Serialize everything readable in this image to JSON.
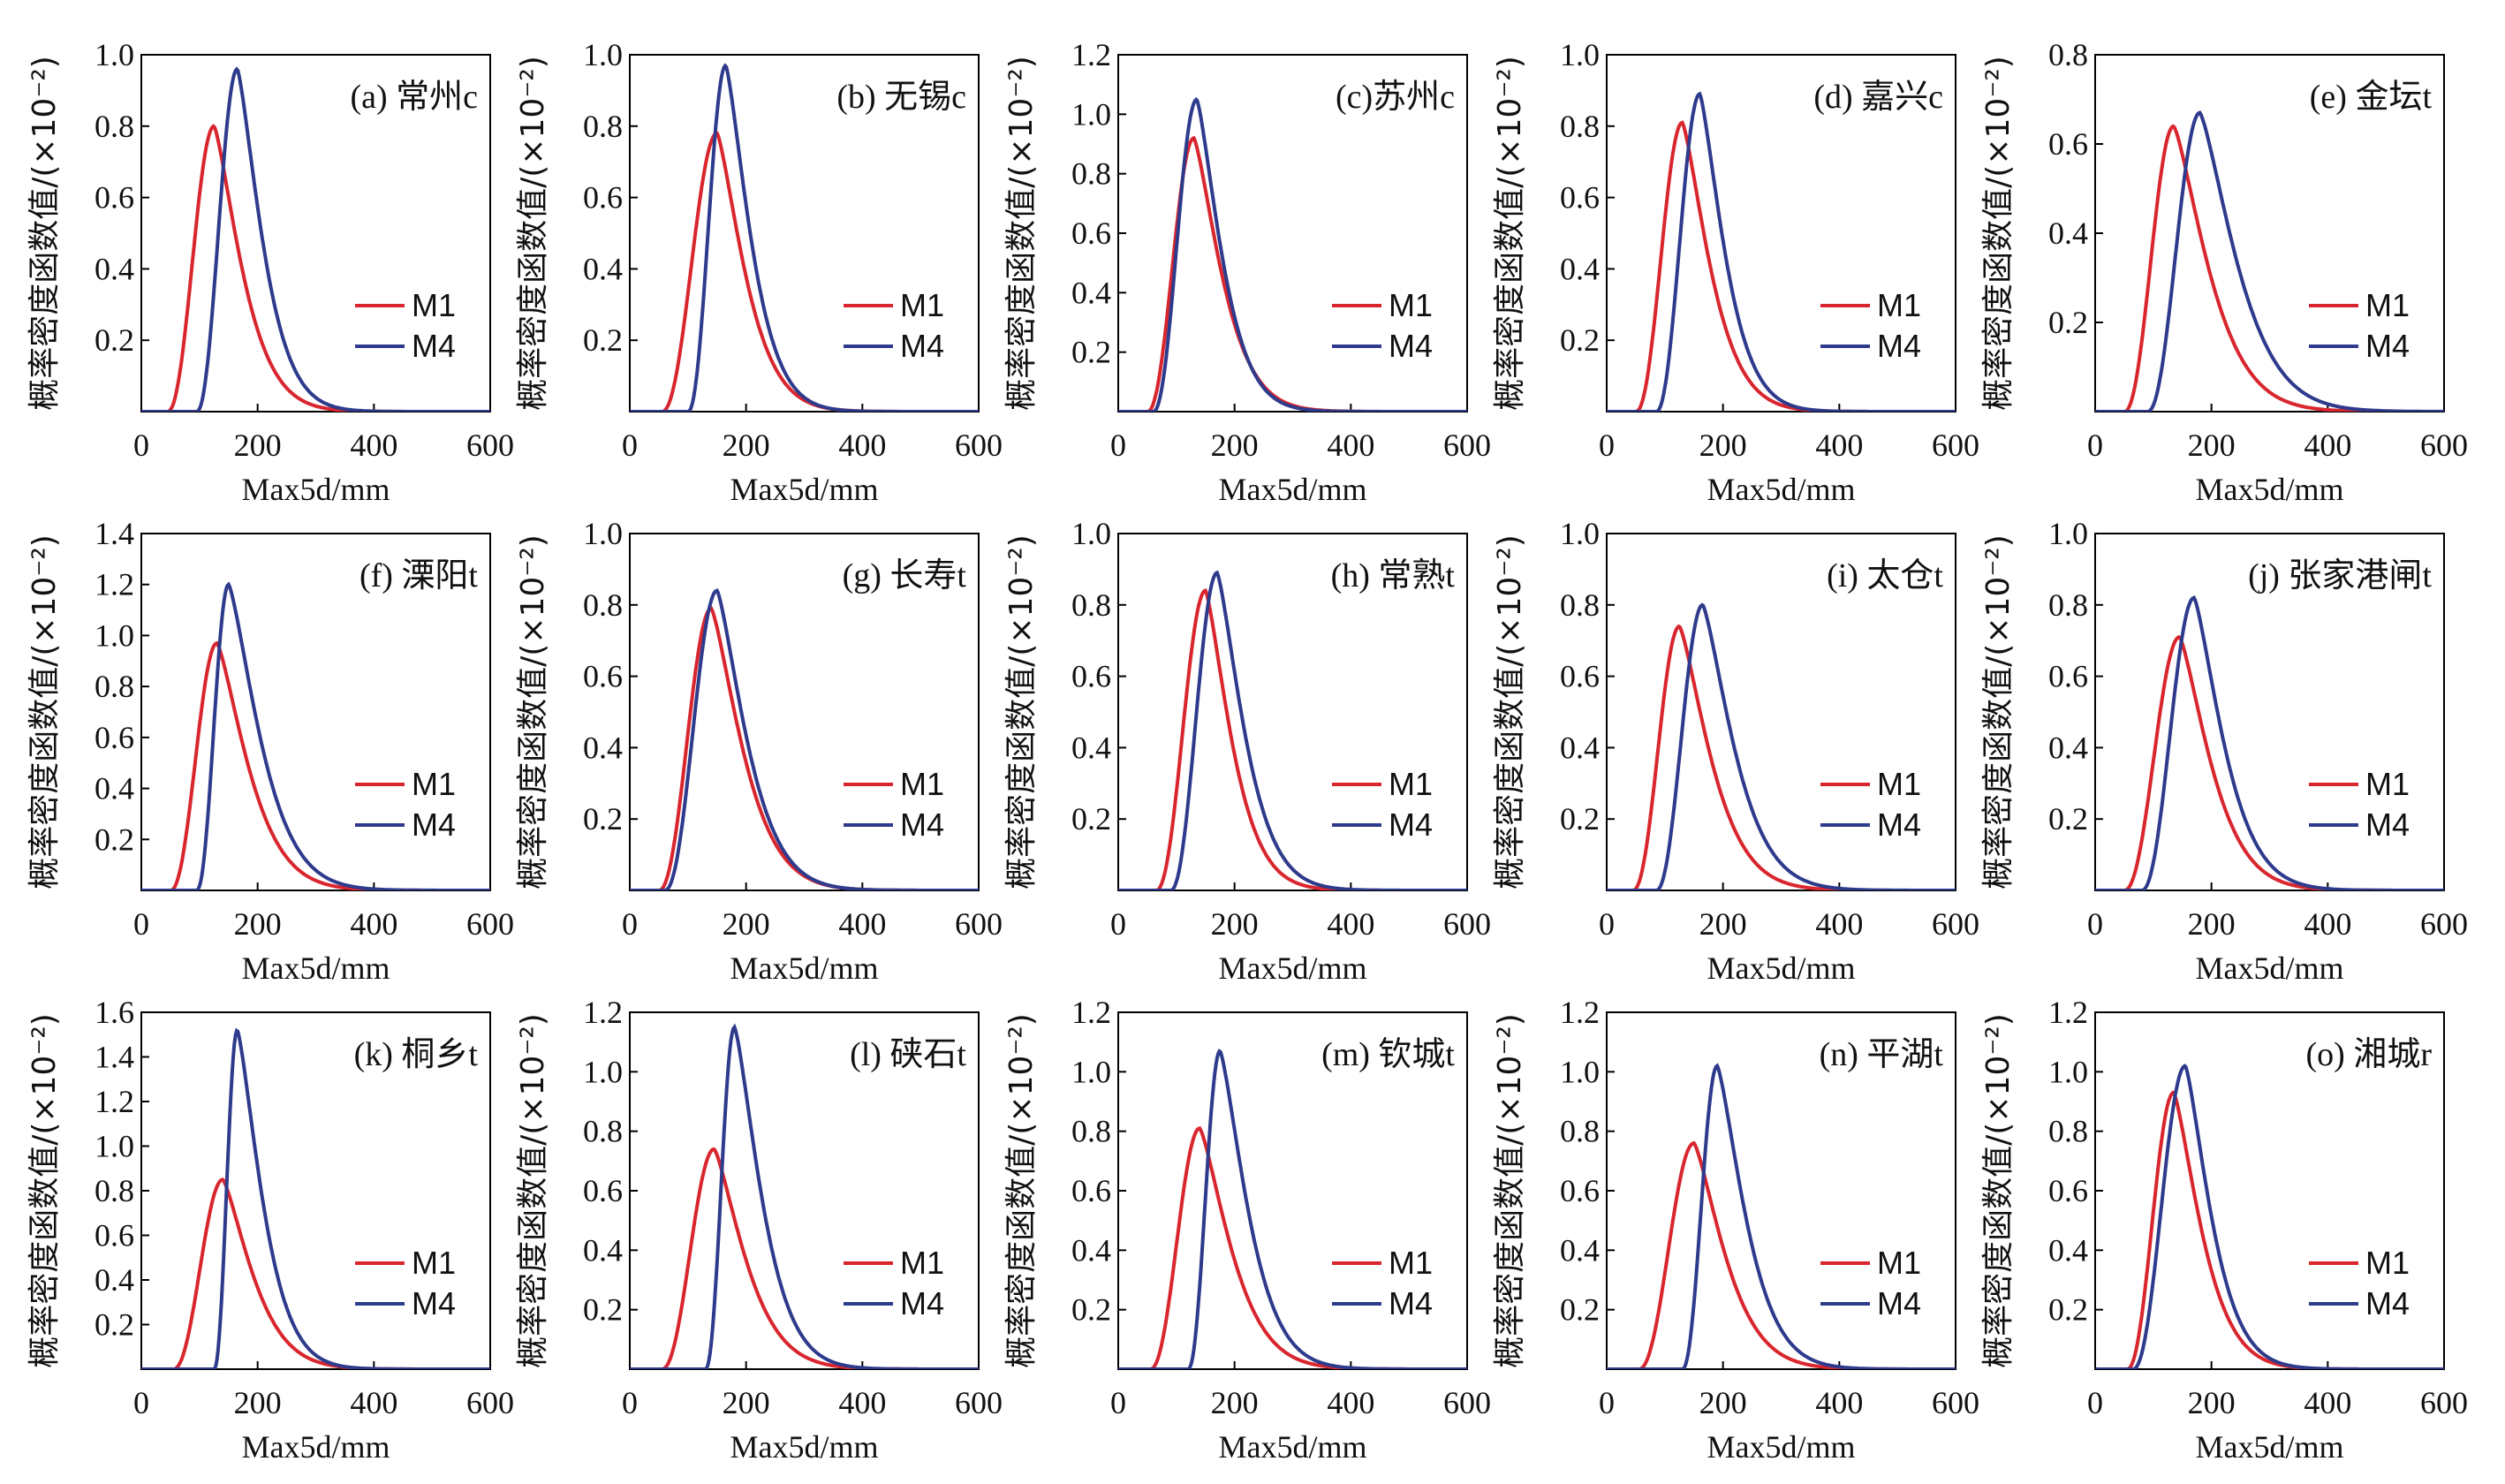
{
  "figure": {
    "ylabel": "概率密度函数值/(×10⁻²)",
    "xlabel": "Max5d/mm"
  },
  "chart_data": [
    {
      "type": "line",
      "title": "(a) 常州c",
      "xlabel": "Max5d/mm",
      "ylabel": "概率密度函数值/(×10⁻²)",
      "xlim": [
        0,
        600
      ],
      "ylim": [
        0,
        1.0
      ],
      "yticks": [
        0.2,
        0.4,
        0.6,
        0.8,
        1.0
      ],
      "xticks": [
        0,
        200,
        400,
        600
      ],
      "legend": "right",
      "series": [
        {
          "name": "M1",
          "color": "#d9262e",
          "peak_x": 125,
          "peak_y": 0.8,
          "start_x": 45,
          "right_decay": 0.045
        },
        {
          "name": "M4",
          "color": "#2e3a8c",
          "peak_x": 165,
          "peak_y": 0.96,
          "start_x": 95,
          "right_decay": 0.05
        }
      ]
    },
    {
      "type": "line",
      "title": "(b) 无锡c",
      "xlabel": "Max5d/mm",
      "ylabel": "概率密度函数值/(×10⁻²)",
      "xlim": [
        0,
        600
      ],
      "ylim": [
        0,
        1.0
      ],
      "yticks": [
        0.2,
        0.4,
        0.6,
        0.8,
        1.0
      ],
      "xticks": [
        0,
        200,
        400,
        600
      ],
      "legend": "right",
      "series": [
        {
          "name": "M1",
          "color": "#d9262e",
          "peak_x": 150,
          "peak_y": 0.78,
          "start_x": 55,
          "right_decay": 0.045
        },
        {
          "name": "M4",
          "color": "#2e3a8c",
          "peak_x": 165,
          "peak_y": 0.97,
          "start_x": 100,
          "right_decay": 0.05
        }
      ]
    },
    {
      "type": "line",
      "title": "(c)苏州c",
      "xlabel": "Max5d/mm",
      "ylabel": "概率密度函数值/(×10⁻²)",
      "xlim": [
        0,
        600
      ],
      "ylim": [
        0,
        1.2
      ],
      "yticks": [
        0.2,
        0.4,
        0.6,
        0.8,
        1.0,
        1.2
      ],
      "xticks": [
        0,
        200,
        400,
        600
      ],
      "legend": "right",
      "series": [
        {
          "name": "M1",
          "color": "#d9262e",
          "peak_x": 130,
          "peak_y": 0.92,
          "start_x": 50,
          "right_decay": 0.045
        },
        {
          "name": "M4",
          "color": "#2e3a8c",
          "peak_x": 135,
          "peak_y": 1.05,
          "start_x": 60,
          "right_decay": 0.05
        }
      ]
    },
    {
      "type": "line",
      "title": "(d) 嘉兴c",
      "xlabel": "Max5d/mm",
      "ylabel": "概率密度函数值/(×10⁻²)",
      "xlim": [
        0,
        600
      ],
      "ylim": [
        0,
        1.0
      ],
      "yticks": [
        0.2,
        0.4,
        0.6,
        0.8,
        1.0
      ],
      "xticks": [
        0,
        200,
        400,
        600
      ],
      "legend": "right",
      "series": [
        {
          "name": "M1",
          "color": "#d9262e",
          "peak_x": 130,
          "peak_y": 0.81,
          "start_x": 50,
          "right_decay": 0.045
        },
        {
          "name": "M4",
          "color": "#2e3a8c",
          "peak_x": 160,
          "peak_y": 0.89,
          "start_x": 85,
          "right_decay": 0.05
        }
      ]
    },
    {
      "type": "line",
      "title": "(e) 金坛t",
      "xlabel": "Max5d/mm",
      "ylabel": "概率密度函数值/(×10⁻²)",
      "xlim": [
        0,
        600
      ],
      "ylim": [
        0,
        0.8
      ],
      "yticks": [
        0.2,
        0.4,
        0.6,
        0.8
      ],
      "xticks": [
        0,
        200,
        400,
        600
      ],
      "legend": "right",
      "series": [
        {
          "name": "M1",
          "color": "#d9262e",
          "peak_x": 135,
          "peak_y": 0.64,
          "start_x": 50,
          "right_decay": 0.036
        },
        {
          "name": "M4",
          "color": "#2e3a8c",
          "peak_x": 180,
          "peak_y": 0.67,
          "start_x": 90,
          "right_decay": 0.034
        }
      ]
    },
    {
      "type": "line",
      "title": "(f) 溧阳t",
      "xlabel": "Max5d/mm",
      "ylabel": "概率密度函数值/(×10⁻²)",
      "xlim": [
        0,
        600
      ],
      "ylim": [
        0,
        1.4
      ],
      "yticks": [
        0.2,
        0.4,
        0.6,
        0.8,
        1.0,
        1.2,
        1.4
      ],
      "xticks": [
        0,
        200,
        400,
        600
      ],
      "legend": "right",
      "series": [
        {
          "name": "M1",
          "color": "#d9262e",
          "peak_x": 130,
          "peak_y": 0.97,
          "start_x": 50,
          "right_decay": 0.04
        },
        {
          "name": "M4",
          "color": "#2e3a8c",
          "peak_x": 150,
          "peak_y": 1.2,
          "start_x": 95,
          "right_decay": 0.04
        }
      ]
    },
    {
      "type": "line",
      "title": "(g) 长寿t",
      "xlabel": "Max5d/mm",
      "ylabel": "概率密度函数值/(×10⁻²)",
      "xlim": [
        0,
        600
      ],
      "ylim": [
        0,
        1.0
      ],
      "yticks": [
        0.2,
        0.4,
        0.6,
        0.8,
        1.0
      ],
      "xticks": [
        0,
        200,
        400,
        600
      ],
      "legend": "right",
      "series": [
        {
          "name": "M1",
          "color": "#d9262e",
          "peak_x": 140,
          "peak_y": 0.79,
          "start_x": 50,
          "right_decay": 0.04
        },
        {
          "name": "M4",
          "color": "#2e3a8c",
          "peak_x": 150,
          "peak_y": 0.84,
          "start_x": 60,
          "right_decay": 0.042
        }
      ]
    },
    {
      "type": "line",
      "title": "(h) 常熟t",
      "xlabel": "Max5d/mm",
      "ylabel": "概率密度函数值/(×10⁻²)",
      "xlim": [
        0,
        600
      ],
      "ylim": [
        0,
        1.0
      ],
      "yticks": [
        0.2,
        0.4,
        0.6,
        0.8,
        1.0
      ],
      "xticks": [
        0,
        200,
        400,
        600
      ],
      "legend": "right",
      "series": [
        {
          "name": "M1",
          "color": "#d9262e",
          "peak_x": 150,
          "peak_y": 0.84,
          "start_x": 65,
          "right_decay": 0.048
        },
        {
          "name": "M4",
          "color": "#2e3a8c",
          "peak_x": 170,
          "peak_y": 0.89,
          "start_x": 90,
          "right_decay": 0.046
        }
      ]
    },
    {
      "type": "line",
      "title": "(i) 太仓t",
      "xlabel": "Max5d/mm",
      "ylabel": "概率密度函数值/(×10⁻²)",
      "xlim": [
        0,
        600
      ],
      "ylim": [
        0,
        1.0
      ],
      "yticks": [
        0.2,
        0.4,
        0.6,
        0.8,
        1.0
      ],
      "xticks": [
        0,
        200,
        400,
        600
      ],
      "legend": "right",
      "series": [
        {
          "name": "M1",
          "color": "#d9262e",
          "peak_x": 125,
          "peak_y": 0.74,
          "start_x": 45,
          "right_decay": 0.04
        },
        {
          "name": "M4",
          "color": "#2e3a8c",
          "peak_x": 165,
          "peak_y": 0.8,
          "start_x": 85,
          "right_decay": 0.04
        }
      ]
    },
    {
      "type": "line",
      "title": "(j) 张家港闸t",
      "xlabel": "Max5d/mm",
      "ylabel": "概率密度函数值/(×10⁻²)",
      "xlim": [
        0,
        600
      ],
      "ylim": [
        0,
        1.0
      ],
      "yticks": [
        0.2,
        0.4,
        0.6,
        0.8,
        1.0
      ],
      "xticks": [
        0,
        200,
        400,
        600
      ],
      "legend": "right",
      "series": [
        {
          "name": "M1",
          "color": "#d9262e",
          "peak_x": 145,
          "peak_y": 0.71,
          "start_x": 50,
          "right_decay": 0.04
        },
        {
          "name": "M4",
          "color": "#2e3a8c",
          "peak_x": 170,
          "peak_y": 0.82,
          "start_x": 80,
          "right_decay": 0.042
        }
      ]
    },
    {
      "type": "line",
      "title": "(k) 桐乡t",
      "xlabel": "Max5d/mm",
      "ylabel": "概率密度函数值/(×10⁻²)",
      "xlim": [
        0,
        600
      ],
      "ylim": [
        0,
        1.6
      ],
      "yticks": [
        0.2,
        0.4,
        0.6,
        0.8,
        1.0,
        1.2,
        1.4,
        1.6
      ],
      "xticks": [
        0,
        200,
        400,
        600
      ],
      "legend": "right",
      "series": [
        {
          "name": "M1",
          "color": "#d9262e",
          "peak_x": 140,
          "peak_y": 0.85,
          "start_x": 55,
          "right_decay": 0.042
        },
        {
          "name": "M4",
          "color": "#2e3a8c",
          "peak_x": 165,
          "peak_y": 1.52,
          "start_x": 125,
          "right_decay": 0.05
        }
      ]
    },
    {
      "type": "line",
      "title": "(l) 硖石t",
      "xlabel": "Max5d/mm",
      "ylabel": "概率密度函数值/(×10⁻²)",
      "xlim": [
        0,
        600
      ],
      "ylim": [
        0,
        1.2
      ],
      "yticks": [
        0.2,
        0.4,
        0.6,
        0.8,
        1.0,
        1.2
      ],
      "xticks": [
        0,
        200,
        400,
        600
      ],
      "legend": "right",
      "series": [
        {
          "name": "M1",
          "color": "#d9262e",
          "peak_x": 145,
          "peak_y": 0.74,
          "start_x": 55,
          "right_decay": 0.04
        },
        {
          "name": "M4",
          "color": "#2e3a8c",
          "peak_x": 180,
          "peak_y": 1.15,
          "start_x": 130,
          "right_decay": 0.046
        }
      ]
    },
    {
      "type": "line",
      "title": "(m) 钦城t",
      "xlabel": "Max5d/mm",
      "ylabel": "概率密度函数值/(×10⁻²)",
      "xlim": [
        0,
        600
      ],
      "ylim": [
        0,
        1.2
      ],
      "yticks": [
        0.2,
        0.4,
        0.6,
        0.8,
        1.0,
        1.2
      ],
      "xticks": [
        0,
        200,
        400,
        600
      ],
      "legend": "right",
      "series": [
        {
          "name": "M1",
          "color": "#d9262e",
          "peak_x": 140,
          "peak_y": 0.81,
          "start_x": 55,
          "right_decay": 0.04
        },
        {
          "name": "M4",
          "color": "#2e3a8c",
          "peak_x": 175,
          "peak_y": 1.07,
          "start_x": 120,
          "right_decay": 0.045
        }
      ]
    },
    {
      "type": "line",
      "title": "(n) 平湖t",
      "xlabel": "Max5d/mm",
      "ylabel": "概率密度函数值/(×10⁻²)",
      "xlim": [
        0,
        600
      ],
      "ylim": [
        0,
        1.2
      ],
      "yticks": [
        0.2,
        0.4,
        0.6,
        0.8,
        1.0,
        1.2
      ],
      "xticks": [
        0,
        200,
        400,
        600
      ],
      "legend": "right",
      "series": [
        {
          "name": "M1",
          "color": "#d9262e",
          "peak_x": 150,
          "peak_y": 0.76,
          "start_x": 55,
          "right_decay": 0.04
        },
        {
          "name": "M4",
          "color": "#2e3a8c",
          "peak_x": 190,
          "peak_y": 1.02,
          "start_x": 130,
          "right_decay": 0.044
        }
      ]
    },
    {
      "type": "line",
      "title": "(o) 湘城r",
      "xlabel": "Max5d/mm",
      "ylabel": "概率密度函数值/(×10⁻²)",
      "xlim": [
        0,
        600
      ],
      "ylim": [
        0,
        1.2
      ],
      "yticks": [
        0.2,
        0.4,
        0.6,
        0.8,
        1.0,
        1.2
      ],
      "xticks": [
        0,
        200,
        400,
        600
      ],
      "legend": "right",
      "series": [
        {
          "name": "M1",
          "color": "#d9262e",
          "peak_x": 135,
          "peak_y": 0.93,
          "start_x": 55,
          "right_decay": 0.045
        },
        {
          "name": "M4",
          "color": "#2e3a8c",
          "peak_x": 155,
          "peak_y": 1.02,
          "start_x": 65,
          "right_decay": 0.048
        }
      ]
    }
  ]
}
